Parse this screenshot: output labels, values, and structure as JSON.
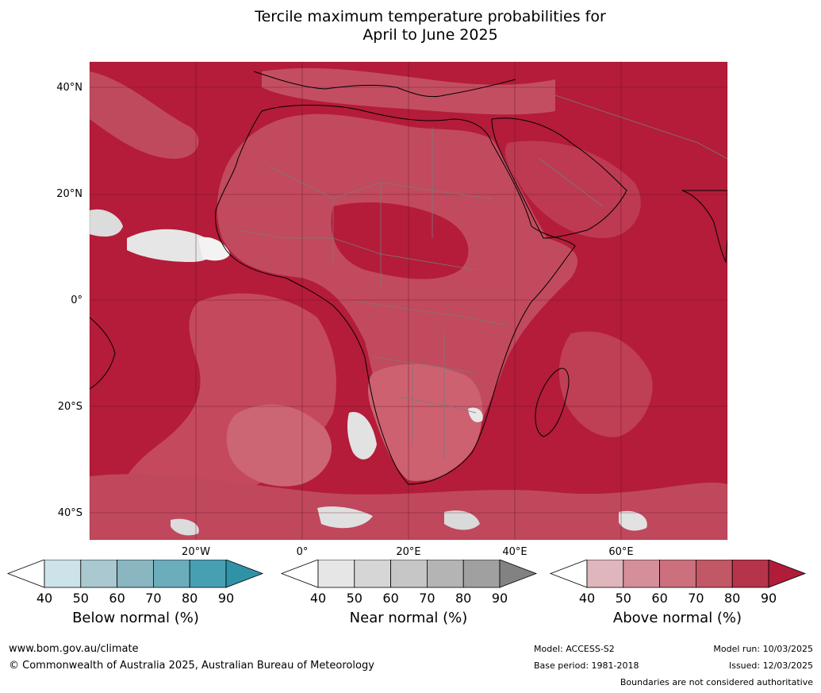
{
  "title": {
    "line1": "Tercile maximum temperature probabilities for",
    "line2": "April to June 2025"
  },
  "map": {
    "lat_labels": [
      "40°N",
      "20°N",
      "0°",
      "20°S",
      "40°S"
    ],
    "lon_labels": [
      "20°W",
      "0°",
      "20°E",
      "40°E",
      "60°E"
    ],
    "colors": {
      "ocean_dominant": "#b41c3a",
      "land_mid": "#c24a5e",
      "above_70": "#c95766",
      "near_white": "#e8e8e8",
      "border": "#7a7a7a",
      "coast": "#000000"
    }
  },
  "colorbars": [
    {
      "name": "below",
      "title": "Below normal (%)",
      "ticks": [
        "40",
        "50",
        "60",
        "70",
        "80",
        "90"
      ],
      "colors": [
        "#ffffff",
        "#cde3ea",
        "#a9c8cf",
        "#89b6c1",
        "#6badbb",
        "#46a0b2",
        "#2f93a8"
      ]
    },
    {
      "name": "near",
      "title": "Near normal (%)",
      "ticks": [
        "40",
        "50",
        "60",
        "70",
        "80",
        "90"
      ],
      "colors": [
        "#ffffff",
        "#e6e6e6",
        "#d6d6d6",
        "#c6c6c6",
        "#b4b4b4",
        "#a0a0a0",
        "#828282"
      ]
    },
    {
      "name": "above",
      "title": "Above normal (%)",
      "ticks": [
        "40",
        "50",
        "60",
        "70",
        "80",
        "90"
      ],
      "colors": [
        "#ffffff",
        "#e0b6bd",
        "#d58f9a",
        "#cb707c",
        "#c25766",
        "#b5334b",
        "#b01c3a"
      ]
    }
  ],
  "footer": {
    "url": "www.bom.gov.au/climate",
    "copyright": "© Commonwealth of Australia 2025, Australian Bureau of Meteorology",
    "model": "Model: ACCESS-S2",
    "base_period": "Base period: 1981-2018",
    "model_run": "Model run: 10/03/2025",
    "issued": "Issued: 12/03/2025",
    "disclaimer": "Boundaries are not considered authoritative"
  }
}
